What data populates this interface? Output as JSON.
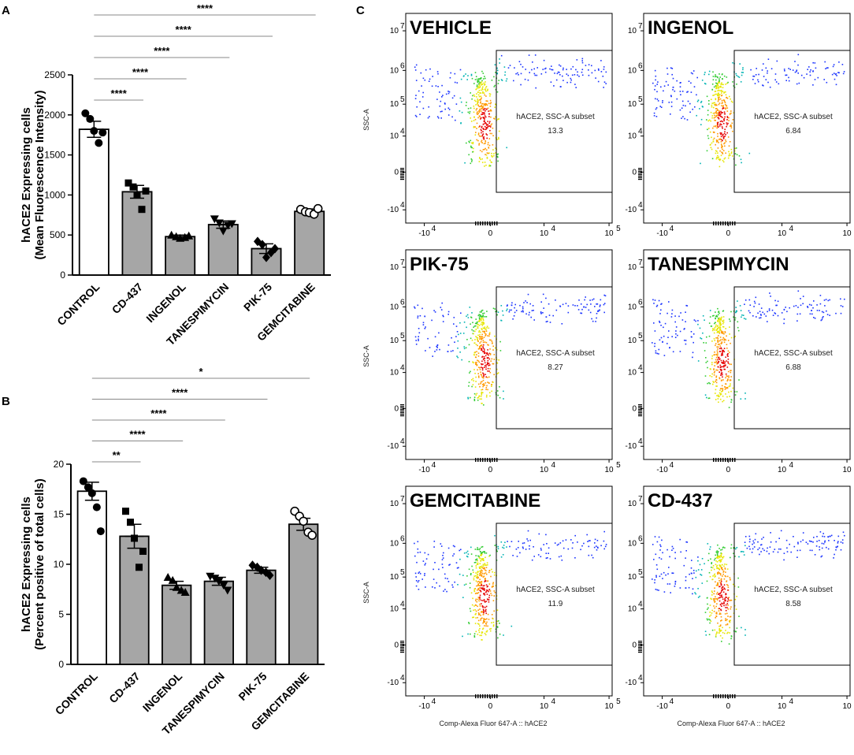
{
  "panels": {
    "a": "A",
    "b": "B",
    "c": "C"
  },
  "chart_data": [
    {
      "type": "bar",
      "panel": "A",
      "ylabel_line1": "hACE2 Expressing cells",
      "ylabel_line2": "(Mean Fluorescence Intensity)",
      "ylim": [
        0,
        2500
      ],
      "yticks": [
        0,
        500,
        1000,
        1500,
        2000,
        2500
      ],
      "categories": [
        "CONTROL",
        "CD-437",
        "INGENOL",
        "TANESPIMYCIN",
        "PIK-75",
        "GEMCITABINE"
      ],
      "values": [
        1820,
        1040,
        480,
        630,
        330,
        795
      ],
      "errors": [
        100,
        80,
        20,
        45,
        60,
        30
      ],
      "bar_colors": [
        "#ffffff",
        "#a6a6a6",
        "#a6a6a6",
        "#a6a6a6",
        "#a6a6a6",
        "#a6a6a6"
      ],
      "markers": [
        "circle",
        "square",
        "triangle-up",
        "triangle-down",
        "diamond",
        "circle-open"
      ],
      "points": [
        [
          2020,
          1950,
          1800,
          1650,
          1780
        ],
        [
          1150,
          1100,
          1000,
          820,
          1050
        ],
        [
          500,
          480,
          460,
          470,
          490
        ],
        [
          700,
          650,
          550,
          620,
          640
        ],
        [
          420,
          380,
          220,
          280,
          330
        ],
        [
          820,
          790,
          780,
          760,
          830
        ]
      ],
      "significance": [
        {
          "target": "CD-437",
          "label": "****"
        },
        {
          "target": "INGENOL",
          "label": "****"
        },
        {
          "target": "TANESPIMYCIN",
          "label": "****"
        },
        {
          "target": "PIK-75",
          "label": "****"
        },
        {
          "target": "GEMCITABINE",
          "label": "****"
        }
      ]
    },
    {
      "type": "bar",
      "panel": "B",
      "ylabel_line1": "hACE2 Expressing cells",
      "ylabel_line2": "(Percent positive of total cells)",
      "ylim": [
        0,
        20
      ],
      "yticks": [
        0,
        5,
        10,
        15,
        20
      ],
      "categories": [
        "CONTROL",
        "CD-437",
        "INGENOL",
        "TANESPIMYCIN",
        "PIK-75",
        "GEMCITABINE"
      ],
      "values": [
        17.3,
        12.8,
        7.9,
        8.3,
        9.4,
        14.0
      ],
      "errors": [
        0.9,
        1.2,
        0.4,
        0.4,
        0.3,
        0.6
      ],
      "bar_colors": [
        "#ffffff",
        "#a6a6a6",
        "#a6a6a6",
        "#a6a6a6",
        "#a6a6a6",
        "#a6a6a6"
      ],
      "markers": [
        "circle",
        "square",
        "triangle-up",
        "triangle-down",
        "diamond",
        "circle-open"
      ],
      "points": [
        [
          18.3,
          17.7,
          17.1,
          15.7,
          13.3
        ],
        [
          15.3,
          14.2,
          12.6,
          9.7,
          11.3
        ],
        [
          8.7,
          8.4,
          7.7,
          7.4,
          7.2
        ],
        [
          8.8,
          8.6,
          8.3,
          7.9,
          7.4
        ],
        [
          9.9,
          9.7,
          9.4,
          9.2,
          8.9
        ],
        [
          15.3,
          14.8,
          14.3,
          13.2,
          12.9
        ]
      ],
      "significance": [
        {
          "target": "CD-437",
          "label": "**"
        },
        {
          "target": "INGENOL",
          "label": "****"
        },
        {
          "target": "TANESPIMYCIN",
          "label": "****"
        },
        {
          "target": "PIK-75",
          "label": "****"
        },
        {
          "target": "GEMCITABINE",
          "label": "*"
        }
      ]
    },
    {
      "type": "scatter",
      "panel": "C",
      "subtype": "flow-cytometry-density",
      "ylabel": "SSC-A",
      "xlabel": "Comp-Alexa Fluor 647-A :: hACE2",
      "xtick_labels": [
        "-10",
        "0",
        "10",
        "10"
      ],
      "xtick_exps": [
        "4",
        "",
        "4",
        "5"
      ],
      "ytick_labels": [
        "-10",
        "0",
        "10",
        "10",
        "10",
        "10"
      ],
      "ytick_exps": [
        "4",
        "",
        "4",
        "5",
        "6",
        "7"
      ],
      "gate_label": "hACE2, SSC-A subset",
      "plots": [
        {
          "title": "VEHICLE",
          "gate_value": "13.3"
        },
        {
          "title": "INGENOL",
          "gate_value": "6.84"
        },
        {
          "title": "PIK-75",
          "gate_value": "8.27"
        },
        {
          "title": "TANESPIMYCIN",
          "gate_value": "6.88"
        },
        {
          "title": "GEMCITABINE",
          "gate_value": "11.9"
        },
        {
          "title": "CD-437",
          "gate_value": "8.58"
        }
      ]
    }
  ]
}
